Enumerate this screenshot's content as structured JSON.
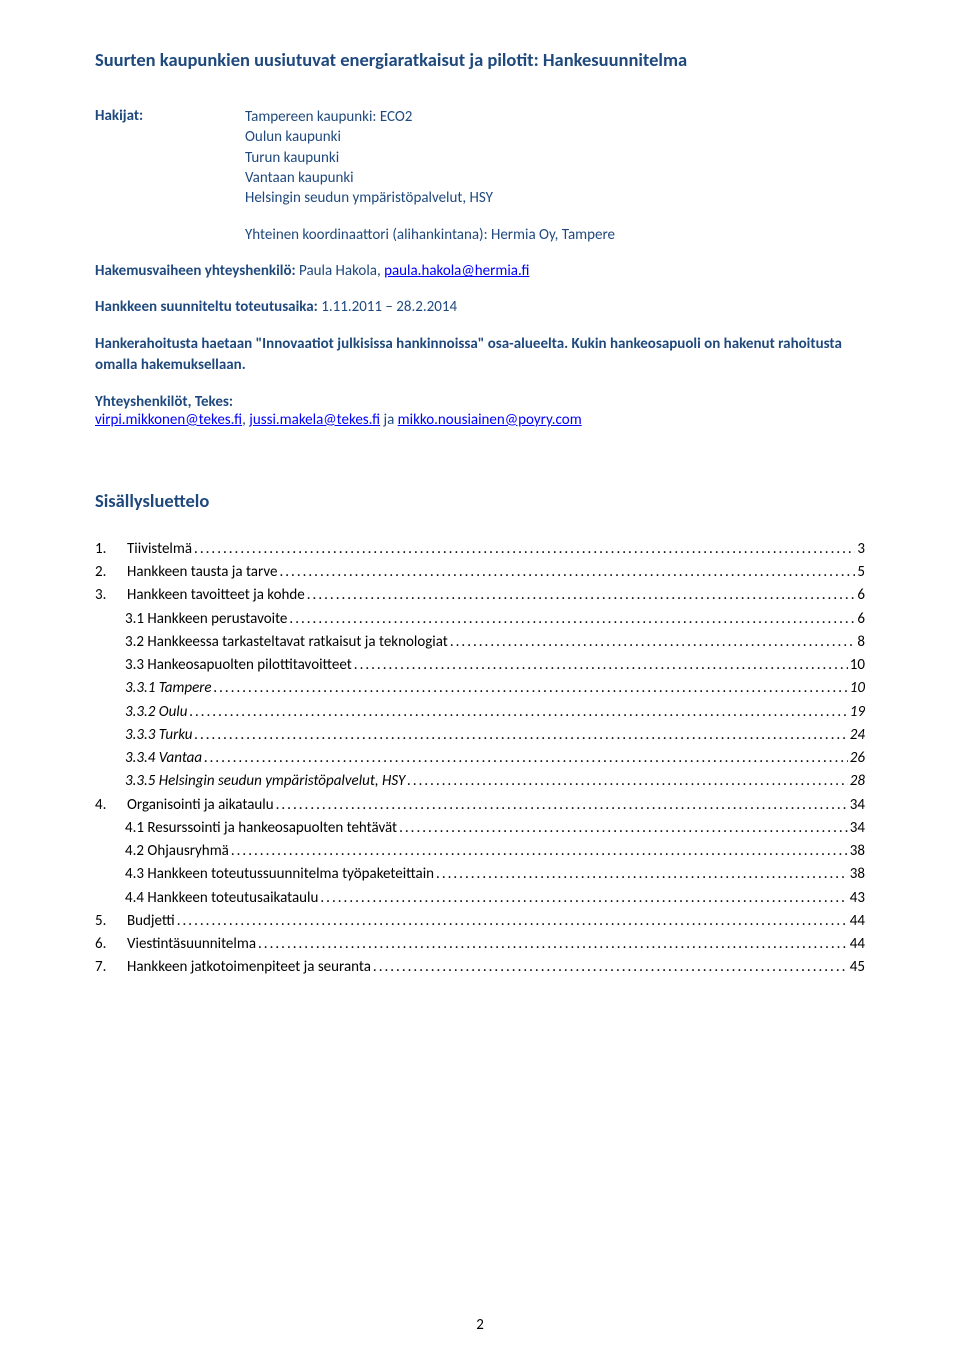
{
  "colors": {
    "heading": "#1f497d",
    "link": "#0000ff",
    "body": "#000000",
    "background": "#ffffff"
  },
  "title": "Suurten kaupunkien uusiutuvat energiaratkaisut ja pilotit: Hankesuunnitelma",
  "hakijat_label": "Hakijat:",
  "hakijat": [
    "Tampereen kaupunki: ECO2",
    "Oulun kaupunki",
    "Turun kaupunki",
    "Vantaan kaupunki",
    "Helsingin seudun ympäristöpalvelut, HSY"
  ],
  "coordinator": "Yhteinen koordinaattori (alihankintana): Hermia Oy, Tampere",
  "contact_label": "Hakemusvaiheen yhteyshenkilö:",
  "contact_name": " Paula Hakola, ",
  "contact_email": "paula.hakola@hermia.fi",
  "duration_label": "Hankkeen suunniteltu toteutusaika:",
  "duration_value": " 1.11.2011 – 28.2.2014",
  "funding_para": "Hankerahoitusta haetaan \"Innovaatiot julkisissa hankinnoissa\" osa-alueelta. Kukin hankeosapuoli on hakenut rahoitusta omalla hakemuksellaan.",
  "contacts_label": "Yhteyshenkilöt, Tekes:",
  "contacts_link1": "virpi.mikkonen@tekes.fi",
  "contacts_sep1": ", ",
  "contacts_link2": "jussi.makela@tekes.fi",
  "contacts_sep2": " ja ",
  "contacts_link3": "mikko.nousiainen@poyry.com",
  "toc_heading": "Sisällysluettelo",
  "toc": [
    {
      "level": 0,
      "num": "1.",
      "label": "Tiivistelmä",
      "page": "3"
    },
    {
      "level": 0,
      "num": "2.",
      "label": "Hankkeen tausta ja tarve",
      "page": "5"
    },
    {
      "level": 0,
      "num": "3.",
      "label": "Hankkeen tavoitteet ja kohde",
      "page": "6"
    },
    {
      "level": 1,
      "num": "",
      "label": "3.1 Hankkeen perustavoite",
      "page": "6"
    },
    {
      "level": 1,
      "num": "",
      "label": "3.2 Hankkeessa tarkasteltavat ratkaisut ja teknologiat",
      "page": "8"
    },
    {
      "level": 1,
      "num": "",
      "label": "3.3 Hankeosapuolten pilottitavoitteet",
      "page": "10"
    },
    {
      "level": 2,
      "num": "",
      "label": "3.3.1 Tampere",
      "page": "10"
    },
    {
      "level": 2,
      "num": "",
      "label": "3.3.2 Oulu",
      "page": "19"
    },
    {
      "level": 2,
      "num": "",
      "label": "3.3.3 Turku",
      "page": "24"
    },
    {
      "level": 2,
      "num": "",
      "label": "3.3.4 Vantaa",
      "page": "26"
    },
    {
      "level": 2,
      "num": "",
      "label": "3.3.5 Helsingin seudun ympäristöpalvelut, HSY",
      "page": "28"
    },
    {
      "level": 0,
      "num": "4.",
      "label": "Organisointi ja aikataulu",
      "page": "34"
    },
    {
      "level": 1,
      "num": "",
      "label": "4.1 Resurssointi ja hankeosapuolten tehtävät",
      "page": "34"
    },
    {
      "level": 1,
      "num": "",
      "label": "4.2 Ohjausryhmä",
      "page": "38"
    },
    {
      "level": 1,
      "num": "",
      "label": "4.3 Hankkeen toteutussuunnitelma työpaketeittain",
      "page": "38"
    },
    {
      "level": 1,
      "num": "",
      "label": "4.4 Hankkeen toteutusaikataulu",
      "page": "43"
    },
    {
      "level": 0,
      "num": "5.",
      "label": "Budjetti",
      "page": "44"
    },
    {
      "level": 0,
      "num": "6.",
      "label": "Viestintäsuunnitelma",
      "page": "44"
    },
    {
      "level": 0,
      "num": "7.",
      "label": "Hankkeen jatkotoimenpiteet ja seuranta",
      "page": "45"
    }
  ],
  "page_number": "2"
}
